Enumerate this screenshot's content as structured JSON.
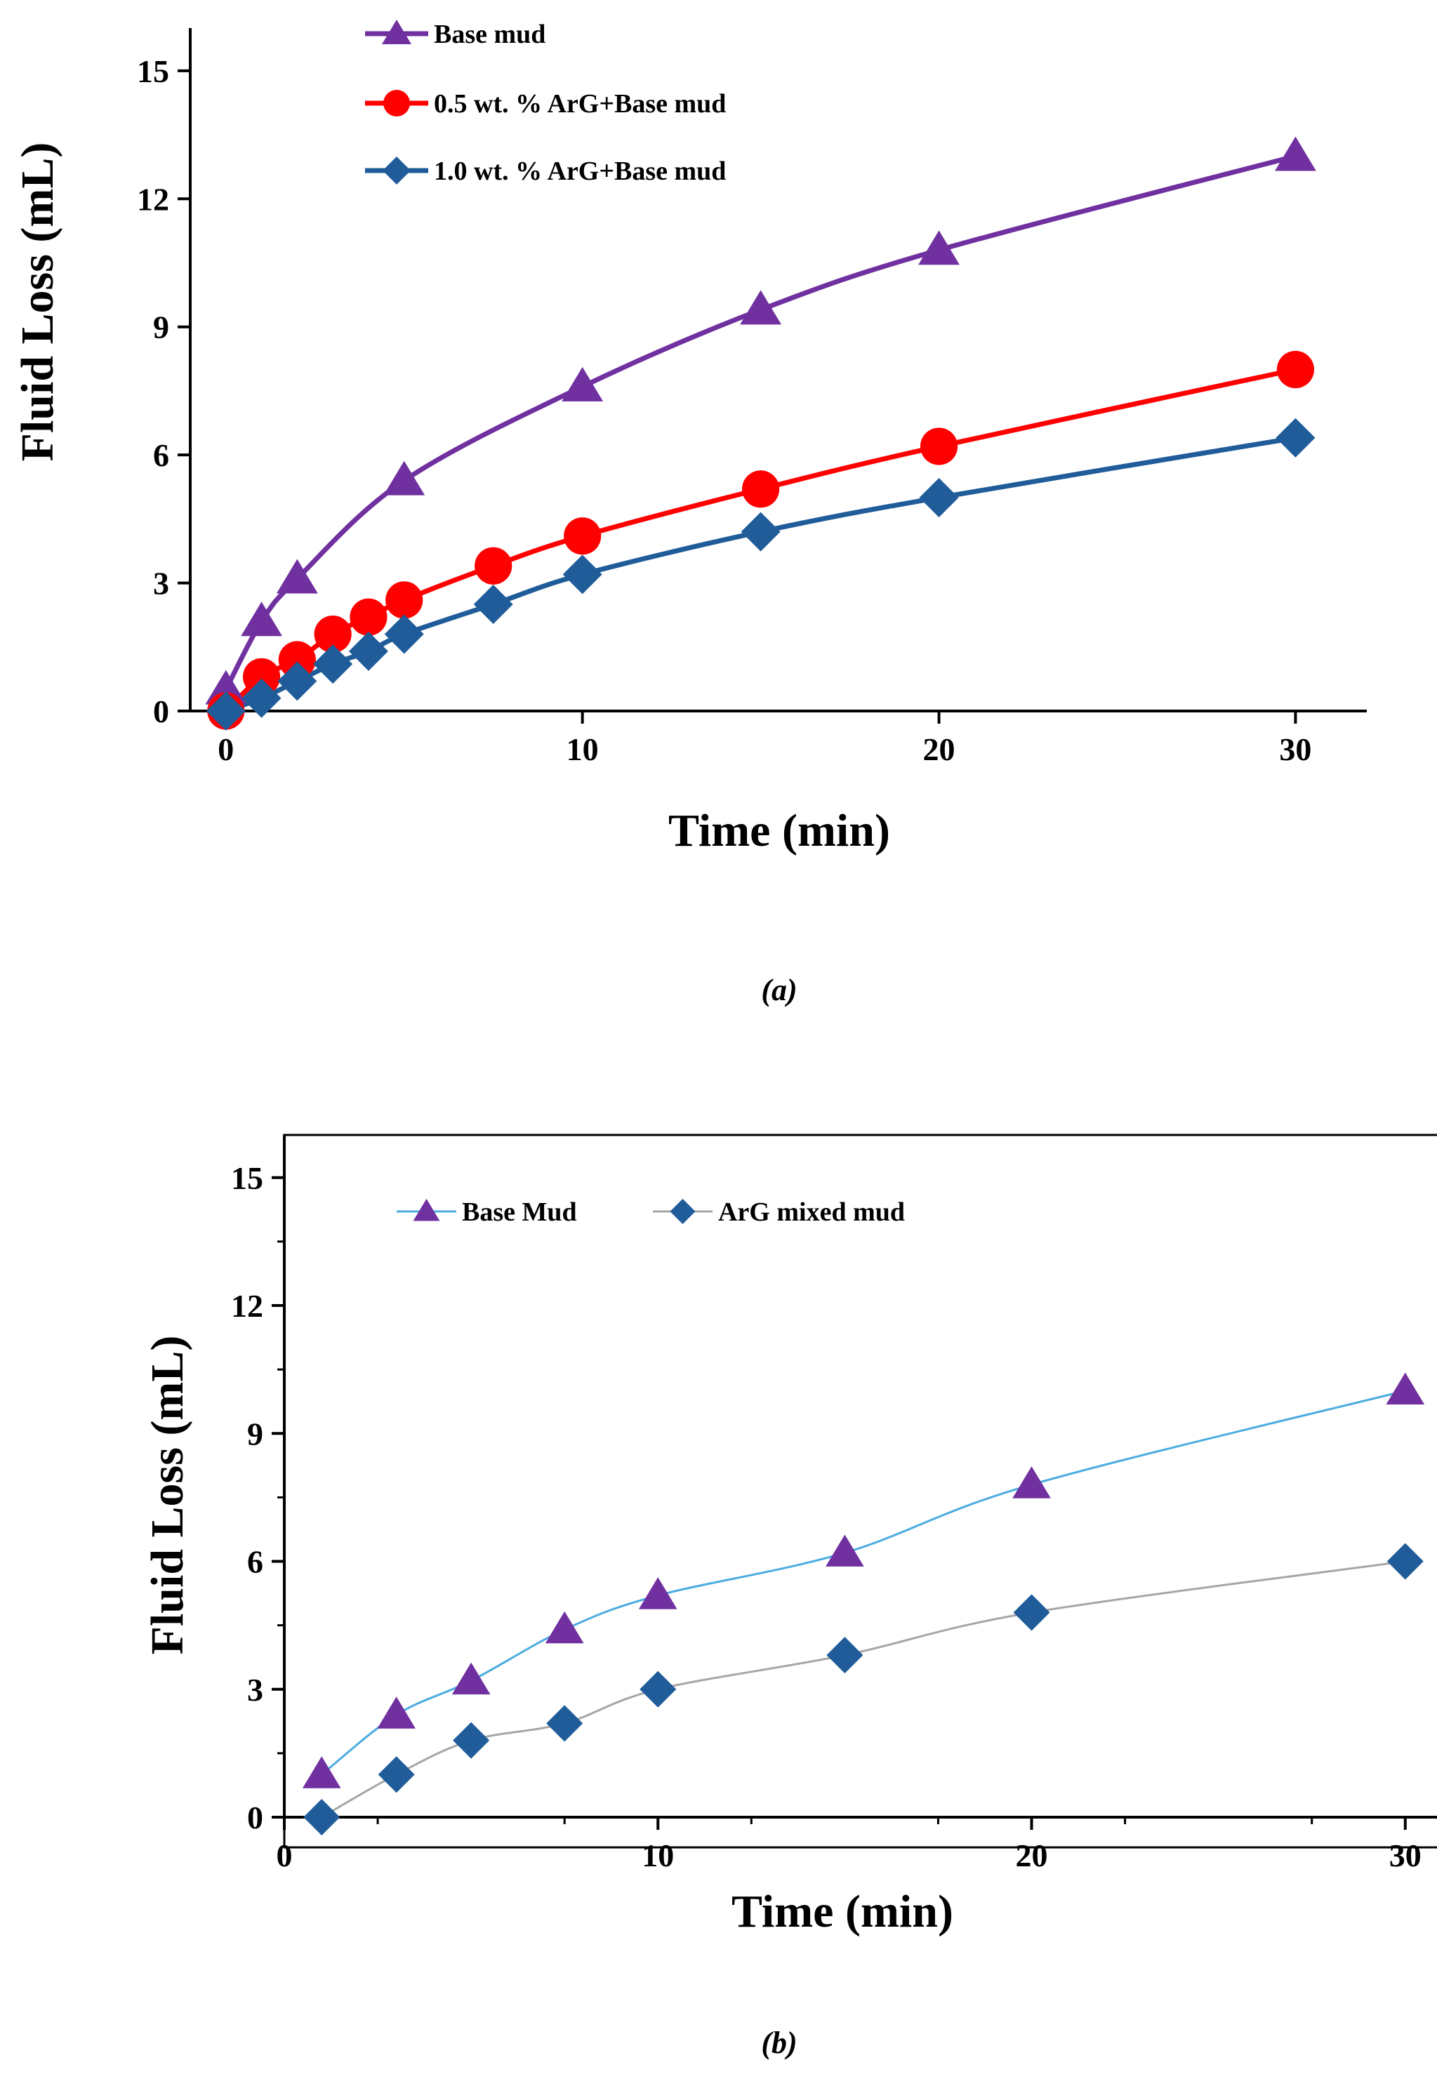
{
  "chart_data": [
    {
      "type": "line",
      "panel_label": "(a)",
      "xlabel": "Time (min)",
      "ylabel": "Fluid Loss (mL)",
      "xlim": [
        -1,
        32
      ],
      "ylim": [
        0,
        16
      ],
      "xticks": [
        0,
        10,
        20,
        30
      ],
      "yticks": [
        0,
        3,
        6,
        9,
        12,
        15
      ],
      "frame": false,
      "grid": false,
      "legend_position": "top-left",
      "series": [
        {
          "name": "Base mud",
          "marker": "triangle",
          "color": "#7030A0",
          "x": [
            0,
            1,
            2,
            5,
            10,
            15,
            20,
            30
          ],
          "y": [
            0.5,
            2.1,
            3.1,
            5.4,
            7.6,
            9.4,
            10.8,
            13.0
          ]
        },
        {
          "name": "0.5 wt. % ArG+Base mud",
          "marker": "circle",
          "color": "#FF0000",
          "x": [
            0,
            1,
            2,
            3,
            4,
            5,
            7.5,
            10,
            15,
            20,
            30
          ],
          "y": [
            0,
            0.8,
            1.2,
            1.8,
            2.2,
            2.6,
            3.4,
            4.1,
            5.2,
            6.2,
            8.0
          ]
        },
        {
          "name": "1.0 wt. % ArG+Base mud",
          "marker": "diamond",
          "color": "#1F5C99",
          "x": [
            0,
            1,
            2,
            3,
            4,
            5,
            7.5,
            10,
            15,
            20,
            30
          ],
          "y": [
            0,
            0.3,
            0.7,
            1.1,
            1.4,
            1.8,
            2.5,
            3.2,
            4.2,
            5.0,
            6.4
          ]
        }
      ]
    },
    {
      "type": "line",
      "panel_label": "(b)",
      "xlabel": "Time (min)",
      "ylabel": "Fluid Loss (mL)",
      "xlim": [
        0,
        31
      ],
      "ylim": [
        0,
        16
      ],
      "xticks": [
        0,
        10,
        20,
        30
      ],
      "yticks": [
        0,
        3,
        6,
        9,
        12,
        15
      ],
      "frame": true,
      "grid": false,
      "legend_position": "top-left",
      "series": [
        {
          "name": "Base Mud",
          "marker": "triangle",
          "color": "#7030A0",
          "line_color": "#4BACE0",
          "x": [
            1,
            3,
            5,
            7.5,
            10,
            15,
            20,
            30
          ],
          "y": [
            1.0,
            2.4,
            3.2,
            4.4,
            5.2,
            6.2,
            7.8,
            10.0
          ]
        },
        {
          "name": "ArG mixed mud",
          "marker": "diamond",
          "color": "#1F5C99",
          "line_color": "#A6A6A6",
          "x": [
            1,
            3,
            5,
            7.5,
            10,
            15,
            20,
            30
          ],
          "y": [
            0,
            1.0,
            1.8,
            2.2,
            3.0,
            3.8,
            4.8,
            6.0
          ]
        }
      ]
    }
  ]
}
